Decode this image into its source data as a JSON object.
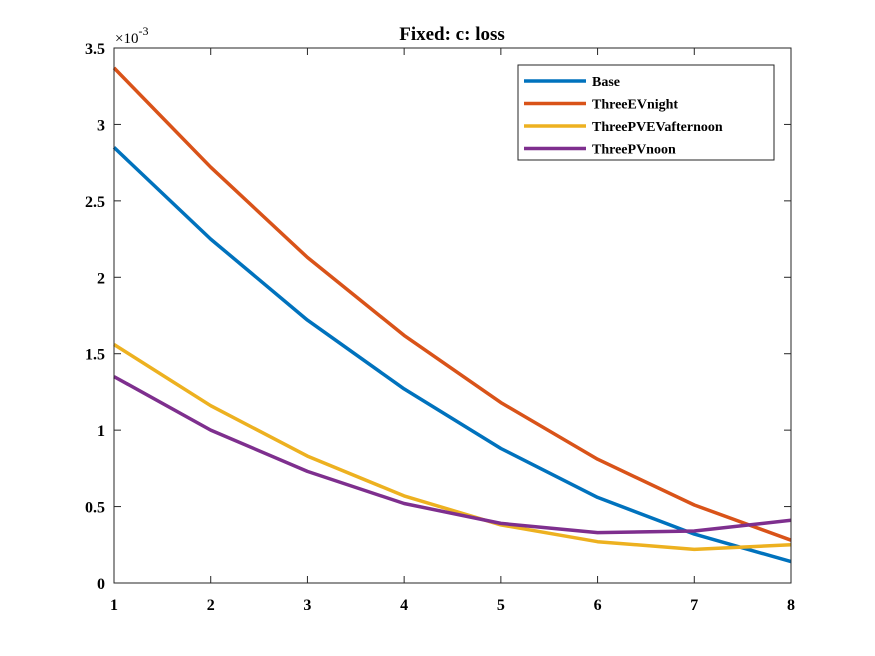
{
  "chart_data": {
    "type": "line",
    "title": "Fixed: c: loss",
    "xlabel": "",
    "ylabel": "",
    "y_exponent_label": "×10",
    "y_exponent_power": "-3",
    "xlim": [
      1,
      8
    ],
    "ylim": [
      0,
      3.5
    ],
    "x_ticks": [
      "1",
      "2",
      "3",
      "4",
      "5",
      "6",
      "7",
      "8"
    ],
    "y_ticks": [
      "0",
      "0.5",
      "1",
      "1.5",
      "2",
      "2.5",
      "3",
      "3.5"
    ],
    "grid": false,
    "legend_position": "top-right",
    "x": [
      1,
      2,
      3,
      4,
      5,
      6,
      7,
      8
    ],
    "series": [
      {
        "name": "Base",
        "color": "#0072BD",
        "values": [
          2.85,
          2.25,
          1.72,
          1.27,
          0.88,
          0.56,
          0.32,
          0.14
        ]
      },
      {
        "name": "ThreeEVnight",
        "color": "#D95319",
        "values": [
          3.37,
          2.72,
          2.13,
          1.62,
          1.18,
          0.81,
          0.51,
          0.28
        ]
      },
      {
        "name": "ThreePVEVafternoon",
        "color": "#EDB120",
        "values": [
          1.56,
          1.16,
          0.83,
          0.57,
          0.38,
          0.27,
          0.22,
          0.25
        ]
      },
      {
        "name": "ThreePVnoon",
        "color": "#7E2F8E",
        "values": [
          1.35,
          1.0,
          0.73,
          0.52,
          0.39,
          0.33,
          0.34,
          0.41
        ]
      }
    ]
  }
}
